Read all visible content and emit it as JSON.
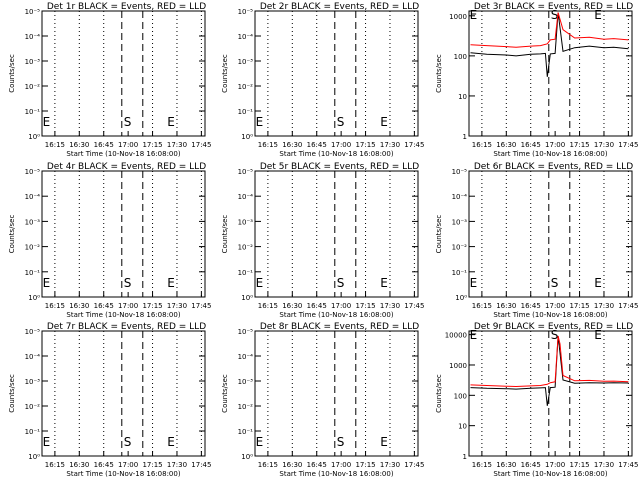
{
  "figure": {
    "background": "#ffffff",
    "foreground": "#000000",
    "events_color": "#000000",
    "lld_color": "#ff0000"
  },
  "chart_data": [
    {
      "id": "det-1r",
      "type": "line",
      "title": "Det 1r BLACK = Events, RED = LLD",
      "xlabel": "Start Time (10-Nov-18 16:08:00)",
      "ylabel": "Counts/sec",
      "x_tick_labels": [
        "16:15",
        "16:30",
        "16:45",
        "17:00",
        "17:15",
        "17:30",
        "17:45"
      ],
      "y_tick_labels": [
        "10⁰",
        "10⁻¹",
        "10⁻²",
        "10⁻³",
        "10⁻⁴",
        "10⁻⁵"
      ],
      "y_scale": "log",
      "markers": [
        "E",
        "S",
        "E"
      ],
      "series": []
    },
    {
      "id": "det-2r",
      "type": "line",
      "title": "Det 2r BLACK = Events, RED = LLD",
      "xlabel": "Start Time (10-Nov-18 16:08:00)",
      "ylabel": "Counts/sec",
      "x_tick_labels": [
        "16:15",
        "16:30",
        "16:45",
        "17:00",
        "17:15",
        "17:30",
        "17:45"
      ],
      "y_tick_labels": [
        "10⁰",
        "10⁻¹",
        "10⁻²",
        "10⁻³",
        "10⁻⁴",
        "10⁻⁵"
      ],
      "y_scale": "log",
      "markers": [
        "E",
        "S",
        "E"
      ],
      "series": []
    },
    {
      "id": "det-3r",
      "type": "line",
      "title": "Det 3r BLACK = Events, RED = LLD",
      "xlabel": "Start Time (10-Nov-18 16:08:00)",
      "ylabel": "Counts/sec",
      "x_tick_labels": [
        "16:15",
        "16:30",
        "16:45",
        "17:00",
        "17:15",
        "17:30",
        "17:45"
      ],
      "y_tick_labels": [
        "1",
        "10",
        "100",
        "1000"
      ],
      "y_scale": "log",
      "markers": [
        "E",
        "S",
        "E"
      ],
      "series": [
        {
          "color": "#000000",
          "x": [
            16.133,
            16.3,
            16.5,
            16.6,
            16.75,
            16.85,
            16.9,
            16.92,
            16.95,
            17.0,
            17.03,
            17.08,
            17.2,
            17.35,
            17.5,
            17.6,
            17.75
          ],
          "y": [
            120,
            110,
            105,
            100,
            110,
            112,
            115,
            30,
            112,
            115,
            1200,
            130,
            160,
            175,
            160,
            165,
            150
          ]
        },
        {
          "color": "#ff0000",
          "x": [
            16.133,
            16.3,
            16.5,
            16.6,
            16.75,
            16.85,
            16.92,
            16.95,
            17.0,
            17.03,
            17.08,
            17.2,
            17.35,
            17.5,
            17.6,
            17.75
          ],
          "y": [
            190,
            180,
            170,
            165,
            175,
            180,
            200,
            250,
            260,
            1200,
            450,
            280,
            290,
            260,
            270,
            250
          ]
        }
      ]
    },
    {
      "id": "det-4r",
      "type": "line",
      "title": "Det 4r BLACK = Events, RED = LLD",
      "xlabel": "Start Time (10-Nov-18 16:08:00)",
      "ylabel": "Counts/sec",
      "x_tick_labels": [
        "16:15",
        "16:30",
        "16:45",
        "17:00",
        "17:15",
        "17:30",
        "17:45"
      ],
      "y_tick_labels": [
        "10⁰",
        "10⁻¹",
        "10⁻²",
        "10⁻³",
        "10⁻⁴",
        "10⁻⁵"
      ],
      "y_scale": "log",
      "markers": [
        "E",
        "S",
        "E"
      ],
      "series": []
    },
    {
      "id": "det-5r",
      "type": "line",
      "title": "Det 5r BLACK = Events, RED = LLD",
      "xlabel": "Start Time (10-Nov-18 16:08:00)",
      "ylabel": "Counts/sec",
      "x_tick_labels": [
        "16:15",
        "16:30",
        "16:45",
        "17:00",
        "17:15",
        "17:30",
        "17:45"
      ],
      "y_tick_labels": [
        "10⁰",
        "10⁻¹",
        "10⁻²",
        "10⁻³",
        "10⁻⁴",
        "10⁻⁵"
      ],
      "y_scale": "log",
      "markers": [
        "E",
        "S",
        "E"
      ],
      "series": []
    },
    {
      "id": "det-6r",
      "type": "line",
      "title": "Det 6r BLACK = Events, RED = LLD",
      "xlabel": "Start Time (10-Nov-18 16:08:00)",
      "ylabel": "Counts/sec",
      "x_tick_labels": [
        "16:15",
        "16:30",
        "16:45",
        "17:00",
        "17:15",
        "17:30",
        "17:45"
      ],
      "y_tick_labels": [
        "10⁰",
        "10⁻¹",
        "10⁻²",
        "10⁻³",
        "10⁻⁴",
        "10⁻⁵"
      ],
      "y_scale": "log",
      "markers": [
        "E",
        "S",
        "E"
      ],
      "series": []
    },
    {
      "id": "det-7r",
      "type": "line",
      "title": "Det 7r BLACK = Events, RED = LLD",
      "xlabel": "Start Time (10-Nov-18 16:08:00)",
      "ylabel": "Counts/sec",
      "x_tick_labels": [
        "16:15",
        "16:30",
        "16:45",
        "17:00",
        "17:15",
        "17:30",
        "17:45"
      ],
      "y_tick_labels": [
        "10⁰",
        "10⁻¹",
        "10⁻²",
        "10⁻³",
        "10⁻⁴",
        "10⁻⁵"
      ],
      "y_scale": "log",
      "markers": [
        "E",
        "S",
        "E"
      ],
      "series": []
    },
    {
      "id": "det-8r",
      "type": "line",
      "title": "Det 8r BLACK = Events, RED = LLD",
      "xlabel": "Start Time (10-Nov-18 16:08:00)",
      "ylabel": "Counts/sec",
      "x_tick_labels": [
        "16:15",
        "16:30",
        "16:45",
        "17:00",
        "17:15",
        "17:30",
        "17:45"
      ],
      "y_tick_labels": [
        "10⁰",
        "10⁻¹",
        "10⁻²",
        "10⁻³",
        "10⁻⁴",
        "10⁻⁵"
      ],
      "y_scale": "log",
      "markers": [
        "E",
        "S",
        "E"
      ],
      "series": []
    },
    {
      "id": "det-9r",
      "type": "line",
      "title": "Det 9r BLACK = Events, RED = LLD",
      "xlabel": "Start Time (10-Nov-18 16:08:00)",
      "ylabel": "Counts/sec",
      "x_tick_labels": [
        "16:15",
        "16:30",
        "16:45",
        "17:00",
        "17:15",
        "17:30",
        "17:45"
      ],
      "y_tick_labels": [
        "1",
        "10",
        "100",
        "1000",
        "10000"
      ],
      "y_scale": "log",
      "markers": [
        "E",
        "S",
        "E"
      ],
      "series": [
        {
          "color": "#000000",
          "x": [
            16.133,
            16.3,
            16.5,
            16.6,
            16.75,
            16.85,
            16.9,
            16.92,
            16.95,
            17.0,
            17.03,
            17.08,
            17.2,
            17.35,
            17.5,
            17.6,
            17.75
          ],
          "y": [
            180,
            170,
            165,
            160,
            170,
            175,
            180,
            45,
            180,
            185,
            9000,
            320,
            250,
            260,
            255,
            260,
            255
          ]
        },
        {
          "color": "#ff0000",
          "x": [
            16.133,
            16.3,
            16.5,
            16.6,
            16.75,
            16.85,
            16.92,
            16.95,
            17.0,
            17.03,
            17.05,
            17.08,
            17.2,
            17.35,
            17.5,
            17.6,
            17.75
          ],
          "y": [
            220,
            210,
            200,
            195,
            205,
            210,
            230,
            260,
            280,
            9000,
            5000,
            450,
            300,
            310,
            290,
            295,
            280
          ]
        }
      ]
    }
  ]
}
